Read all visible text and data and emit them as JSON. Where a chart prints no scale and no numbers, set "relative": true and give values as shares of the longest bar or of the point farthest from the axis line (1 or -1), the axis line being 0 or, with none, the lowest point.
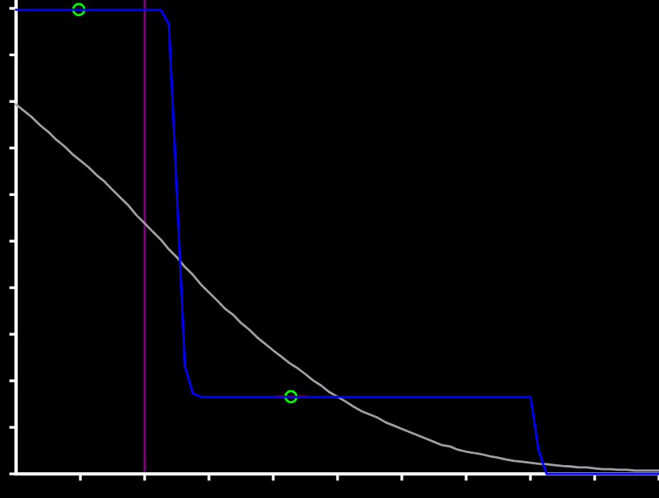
{
  "chart_data": {
    "type": "line",
    "relative": true,
    "tick_labels": false,
    "grid": false,
    "categories": [
      null,
      null,
      null,
      null,
      null,
      null,
      null,
      null,
      null,
      null,
      null,
      null,
      null,
      null,
      null,
      null,
      null,
      null,
      null,
      null,
      null,
      null,
      null,
      null,
      null,
      null,
      null,
      null,
      null,
      null,
      null,
      null,
      null,
      null,
      null,
      null,
      null,
      null,
      null,
      null,
      null,
      null,
      null,
      null,
      null,
      null,
      null,
      null,
      null,
      null,
      null,
      null,
      null,
      null,
      null,
      null,
      null,
      null,
      null,
      null,
      null,
      null,
      null,
      null,
      null,
      null,
      null,
      null,
      null,
      null,
      null,
      null,
      null,
      null,
      null,
      null,
      null,
      null,
      null,
      null,
      null
    ],
    "series": [
      {
        "color": "#a0a0a0",
        "values": [
          0.796,
          0.782,
          0.768,
          0.751,
          0.737,
          0.72,
          0.706,
          0.689,
          0.675,
          0.661,
          0.644,
          0.63,
          0.612,
          0.595,
          0.578,
          0.557,
          0.54,
          0.522,
          0.505,
          0.484,
          0.467,
          0.446,
          0.429,
          0.408,
          0.391,
          0.374,
          0.356,
          0.343,
          0.325,
          0.311,
          0.294,
          0.28,
          0.266,
          0.253,
          0.239,
          0.228,
          0.215,
          0.201,
          0.19,
          0.176,
          0.166,
          0.156,
          0.145,
          0.135,
          0.128,
          0.121,
          0.111,
          0.104,
          0.097,
          0.09,
          0.083,
          0.076,
          0.069,
          0.062,
          0.059,
          0.052,
          0.048,
          0.045,
          0.042,
          0.038,
          0.035,
          0.031,
          0.028,
          0.026,
          0.024,
          0.022,
          0.021,
          0.019,
          0.017,
          0.016,
          0.014,
          0.014,
          0.012,
          0.01,
          0.01,
          0.009,
          0.009,
          0.007,
          0.007,
          0.007,
          0.007
        ]
      },
      {
        "color": "#0000ff",
        "values": [
          1.0,
          1.0,
          1.0,
          1.0,
          1.0,
          1.0,
          1.0,
          1.0,
          1.0,
          1.0,
          1.0,
          1.0,
          1.0,
          1.0,
          1.0,
          1.0,
          1.0,
          1.0,
          1.0,
          0.969,
          0.606,
          0.232,
          0.173,
          0.166,
          0.166,
          0.166,
          0.166,
          0.166,
          0.166,
          0.166,
          0.166,
          0.166,
          0.166,
          0.166,
          0.166,
          0.166,
          0.166,
          0.166,
          0.166,
          0.166,
          0.166,
          0.166,
          0.166,
          0.166,
          0.166,
          0.166,
          0.166,
          0.166,
          0.166,
          0.166,
          0.166,
          0.166,
          0.166,
          0.166,
          0.166,
          0.166,
          0.166,
          0.166,
          0.166,
          0.166,
          0.166,
          0.166,
          0.166,
          0.166,
          0.166,
          0.052,
          0.0,
          0.0,
          0.0,
          0.0,
          0.0,
          0.0,
          0.0,
          0.0,
          0.0,
          0.0,
          0.0,
          0.0,
          0.0,
          0.0,
          0.0
        ]
      }
    ]
  }
}
